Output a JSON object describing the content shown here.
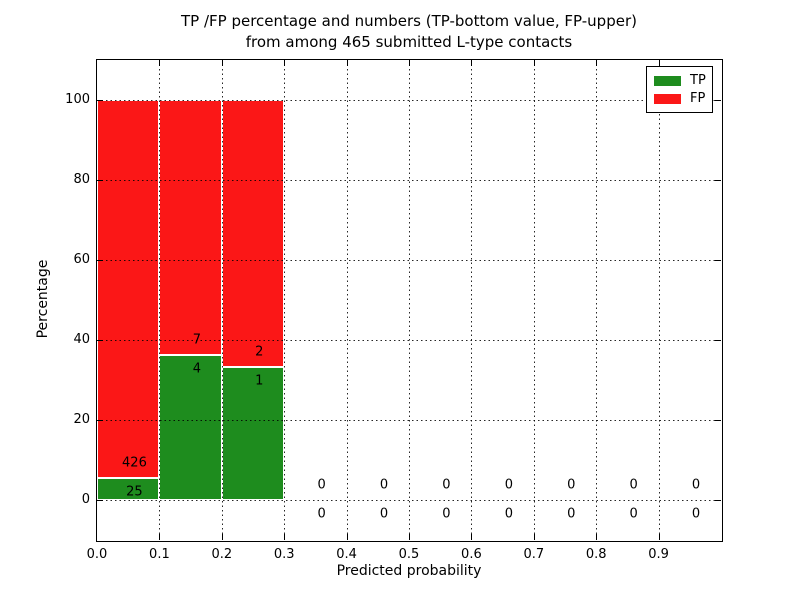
{
  "title": {
    "line1": "TP /FP percentage and numbers (TP-bottom value, FP-upper)",
    "line2": "from among 465 submitted L-type contacts"
  },
  "chart_data": {
    "type": "bar",
    "stacked": true,
    "title": "TP /FP percentage and numbers (TP-bottom value, FP-upper)\nfrom among 465 submitted L-type contacts",
    "xlabel": "Predicted probability",
    "ylabel": "Percentage",
    "xlim": [
      0.0,
      1.0
    ],
    "ylim": [
      -10,
      110
    ],
    "xticks": [
      "0.0",
      "0.1",
      "0.2",
      "0.3",
      "0.4",
      "0.5",
      "0.6",
      "0.7",
      "0.8",
      "0.9"
    ],
    "xtick_values": [
      0.0,
      0.1,
      0.2,
      0.3,
      0.4,
      0.5,
      0.6,
      0.7,
      0.8,
      0.9
    ],
    "yticks": [
      0,
      20,
      40,
      60,
      80,
      100
    ],
    "grid": true,
    "grid_style": "dotted",
    "legend_position": "upper right",
    "total_contacts": 465,
    "bins": [
      {
        "x0": 0.0,
        "x1": 0.1,
        "tp": 25,
        "fp": 426
      },
      {
        "x0": 0.1,
        "x1": 0.2,
        "tp": 4,
        "fp": 7
      },
      {
        "x0": 0.2,
        "x1": 0.3,
        "tp": 1,
        "fp": 2
      },
      {
        "x0": 0.3,
        "x1": 0.4,
        "tp": 0,
        "fp": 0
      },
      {
        "x0": 0.4,
        "x1": 0.5,
        "tp": 0,
        "fp": 0
      },
      {
        "x0": 0.5,
        "x1": 0.6,
        "tp": 0,
        "fp": 0
      },
      {
        "x0": 0.6,
        "x1": 0.7,
        "tp": 0,
        "fp": 0
      },
      {
        "x0": 0.7,
        "x1": 0.8,
        "tp": 0,
        "fp": 0
      },
      {
        "x0": 0.8,
        "x1": 0.9,
        "tp": 0,
        "fp": 0
      },
      {
        "x0": 0.9,
        "x1": 1.0,
        "tp": 0,
        "fp": 0
      }
    ],
    "series": [
      {
        "name": "TP",
        "values_pct": [
          5.5,
          36.4,
          33.3,
          0,
          0,
          0,
          0,
          0,
          0,
          0
        ]
      },
      {
        "name": "FP",
        "values_pct": [
          94.5,
          63.6,
          66.7,
          0,
          0,
          0,
          0,
          0,
          0,
          0
        ]
      }
    ]
  },
  "legend": {
    "items": [
      {
        "label": "TP",
        "color": "#1e8c1e"
      },
      {
        "label": "FP",
        "color": "#fb1717"
      }
    ]
  },
  "colors": {
    "tp": "#1e8c1e",
    "fp": "#fb1717",
    "grid": "#000000",
    "frame": "#000000",
    "background": "#ffffff"
  }
}
